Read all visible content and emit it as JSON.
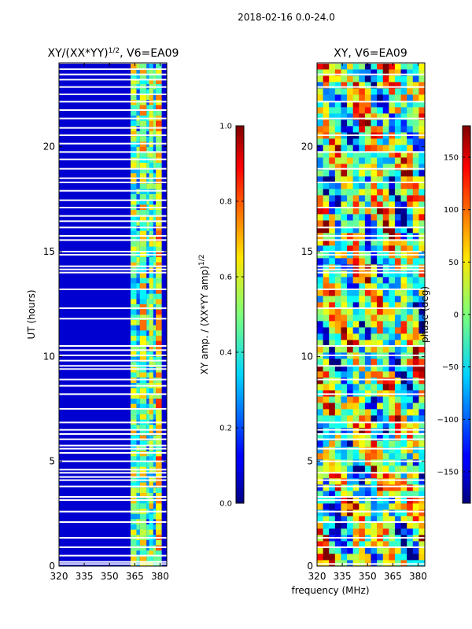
{
  "suptitle": "2018-02-16 0.0-24.0",
  "shared_xlabel": "frequency (MHz)",
  "chart_data": [
    {
      "type": "heatmap",
      "title_base": "XY/(XX*YY)",
      "title_exp": "1/2",
      "title_suffix": ", V6=EA09",
      "xlabel": "",
      "ylabel": "UT (hours)",
      "xlim": [
        320,
        384
      ],
      "ylim": [
        0,
        24
      ],
      "xticks": [
        320,
        335,
        350,
        365,
        380
      ],
      "yticks": [
        0,
        5,
        10,
        15,
        20
      ],
      "colormap": "jet",
      "colorbar": {
        "label_base": "XY amp. / (XX*YY amp)",
        "label_exp": "1/2",
        "range": [
          0,
          1
        ],
        "ticks": [
          "0.0",
          "0.2",
          "0.4",
          "0.6",
          "0.8",
          "1.0"
        ]
      },
      "flagged_hours": [
        0.1,
        0.2,
        0.5,
        0.9,
        1.35,
        2.1,
        2.6,
        3.15,
        3.3,
        3.8,
        4.1,
        4.25,
        4.45,
        4.6,
        5.0,
        5.4,
        5.6,
        5.75,
        6.05,
        6.3,
        6.5,
        6.85,
        7.5,
        8.2,
        8.6,
        8.9,
        9.4,
        9.55,
        9.8,
        10.05,
        10.3,
        10.5,
        11.8,
        12.3,
        13.2,
        14.0,
        14.15,
        14.3,
        14.85,
        15.0,
        15.55,
        15.75,
        16.15,
        16.45,
        16.7,
        17.1,
        17.45,
        17.9,
        18.3,
        18.5,
        18.95,
        19.4,
        19.75,
        20.15,
        20.55,
        20.9,
        21.35,
        21.75,
        22.15,
        22.5,
        22.85,
        23.2,
        23.45,
        23.7,
        24.0
      ],
      "bands": [
        {
          "start": 320,
          "end": 352,
          "level": 0.08
        },
        {
          "start": 352,
          "end": 354,
          "level": 0.12
        },
        {
          "start": 354,
          "end": 362.5,
          "level": 0.1
        },
        {
          "start": 362.5,
          "end": 366,
          "level": 0.5
        },
        {
          "start": 366,
          "end": 368,
          "level": 0.38
        },
        {
          "start": 368,
          "end": 372,
          "level": 0.55
        },
        {
          "start": 372,
          "end": 373.5,
          "level": 0.35
        },
        {
          "start": 373.5,
          "end": 376,
          "level": 0.5
        },
        {
          "start": 376,
          "end": 377.5,
          "level": 0.35
        },
        {
          "start": 377.5,
          "end": 381,
          "level": 0.62
        },
        {
          "start": 381,
          "end": 384,
          "level": 0.15
        }
      ]
    },
    {
      "type": "heatmap",
      "title": "XY, V6=EA09",
      "xlabel": "frequency (MHz)",
      "ylabel": "",
      "xlim": [
        320,
        384
      ],
      "ylim": [
        0,
        24
      ],
      "xticks": [
        320,
        335,
        350,
        365,
        380
      ],
      "yticks": [
        0,
        5,
        10,
        15,
        20
      ],
      "colormap": "jet",
      "colorbar": {
        "label": "phase (deg)",
        "range": [
          -180,
          180
        ],
        "ticks": [
          "−150",
          "−100",
          "−50",
          "0",
          "50",
          "100",
          "150"
        ]
      },
      "flagged_hours": [
        0.1,
        0.9,
        1.35,
        2.1,
        2.6,
        3.15,
        3.3,
        3.8,
        4.1,
        4.45,
        5.0,
        5.6,
        6.05,
        6.3,
        6.5,
        6.85,
        8.2,
        8.9,
        9.55,
        10.05,
        10.5,
        12.3,
        13.2,
        14.0,
        14.15,
        14.3,
        14.85,
        15.0,
        15.55,
        15.75,
        16.15,
        17.1,
        18.3,
        18.95,
        19.75,
        20.55,
        21.35,
        22.15,
        22.85,
        23.45,
        24.0
      ]
    }
  ]
}
